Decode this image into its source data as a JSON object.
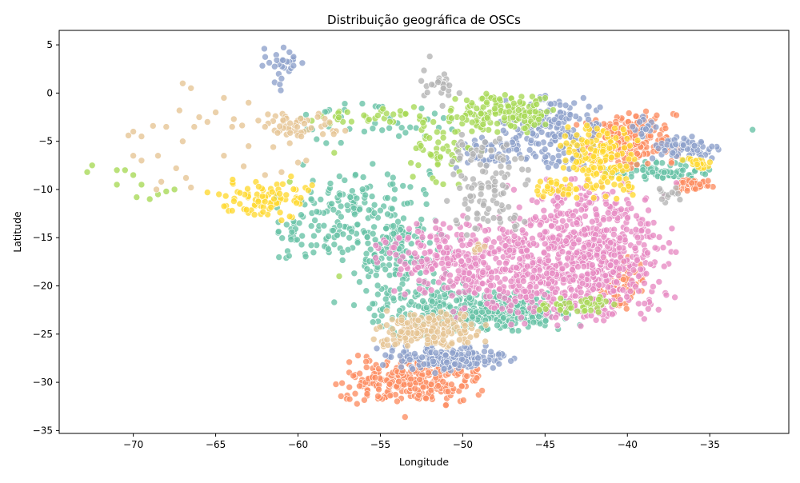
{
  "chart_data": {
    "type": "scatter",
    "title": "Distribuição geográfica de OSCs",
    "xlabel": "Longitude",
    "ylabel": "Latitude",
    "xlim": [
      -74.5,
      -30.2
    ],
    "ylim": [
      -35.3,
      6.5
    ],
    "xticks": [
      -70,
      -65,
      -60,
      -55,
      -50,
      -45,
      -40,
      -35
    ],
    "yticks": [
      5,
      0,
      -5,
      -10,
      -15,
      -20,
      -25,
      -30,
      -35
    ],
    "grid": false,
    "legend": "none",
    "series": [
      {
        "color": "#66c2a5",
        "clusters": [
          {
            "x": -56.5,
            "y": -12.5,
            "sx": 2.2,
            "sy": 2.6,
            "n": 180
          },
          {
            "x": -53.5,
            "y": -17.5,
            "sx": 1.6,
            "sy": 2.2,
            "n": 120
          },
          {
            "x": -48.0,
            "y": -22.5,
            "sx": 2.4,
            "sy": 1.0,
            "n": 320
          },
          {
            "x": -53.0,
            "y": -22.5,
            "sx": 1.5,
            "sy": 1.4,
            "n": 70
          },
          {
            "x": -55.0,
            "y": -3.0,
            "sx": 2.5,
            "sy": 1.2,
            "n": 40
          },
          {
            "x": -38.0,
            "y": -8.0,
            "sx": 1.6,
            "sy": 0.5,
            "n": 90
          },
          {
            "x": -60.0,
            "y": -15.0,
            "sx": 1.2,
            "sy": 1.2,
            "n": 25
          }
        ],
        "points": [
          [
            -32.4,
            -3.8
          ],
          [
            -57.8,
            -21.7
          ],
          [
            -56.6,
            -22.0
          ]
        ]
      },
      {
        "color": "#fc8d62",
        "clusters": [
          {
            "x": -40.0,
            "y": -5.0,
            "sx": 1.5,
            "sy": 1.5,
            "n": 220
          },
          {
            "x": -53.0,
            "y": -29.8,
            "sx": 2.0,
            "sy": 1.2,
            "n": 280
          },
          {
            "x": -40.5,
            "y": -19.8,
            "sx": 0.8,
            "sy": 1.4,
            "n": 70
          },
          {
            "x": -36.0,
            "y": -9.5,
            "sx": 0.6,
            "sy": 0.3,
            "n": 40
          }
        ],
        "points": [
          [
            -53.5,
            -33.6
          ],
          [
            -57.7,
            -30.2
          ]
        ]
      },
      {
        "color": "#8da0cb",
        "clusters": [
          {
            "x": -44.5,
            "y": -4.0,
            "sx": 1.5,
            "sy": 1.8,
            "n": 170
          },
          {
            "x": -51.0,
            "y": -27.5,
            "sx": 2.0,
            "sy": 0.7,
            "n": 180
          },
          {
            "x": -36.5,
            "y": -5.8,
            "sx": 1.0,
            "sy": 0.6,
            "n": 60
          },
          {
            "x": -61.0,
            "y": 2.5,
            "sx": 0.8,
            "sy": 1.3,
            "n": 28
          },
          {
            "x": -48.5,
            "y": -6.0,
            "sx": 1.0,
            "sy": 1.0,
            "n": 40
          },
          {
            "x": -39.0,
            "y": -3.5,
            "sx": 0.5,
            "sy": 0.5,
            "n": 15
          }
        ],
        "points": []
      },
      {
        "color": "#e78ac3",
        "clusters": [
          {
            "x": -42.5,
            "y": -16.5,
            "sx": 2.5,
            "sy": 3.5,
            "n": 650
          },
          {
            "x": -50.0,
            "y": -17.0,
            "sx": 2.5,
            "sy": 2.0,
            "n": 300
          },
          {
            "x": -45.5,
            "y": -20.0,
            "sx": 2.5,
            "sy": 1.8,
            "n": 150
          }
        ],
        "points": []
      },
      {
        "color": "#a6d854",
        "clusters": [
          {
            "x": -47.5,
            "y": -2.0,
            "sx": 1.5,
            "sy": 1.0,
            "n": 150
          },
          {
            "x": -51.0,
            "y": -5.5,
            "sx": 1.0,
            "sy": 2.0,
            "n": 60
          },
          {
            "x": -43.0,
            "y": -22.0,
            "sx": 1.5,
            "sy": 0.4,
            "n": 40
          },
          {
            "x": -56.0,
            "y": -2.5,
            "sx": 1.8,
            "sy": 0.4,
            "n": 30
          }
        ],
        "points": [
          [
            -72.8,
            -8.2
          ],
          [
            -71.0,
            -8.0
          ],
          [
            -70.0,
            -8.5
          ],
          [
            -69.5,
            -9.5
          ],
          [
            -68.5,
            -10.5
          ],
          [
            -67.5,
            -10.0
          ],
          [
            -69.0,
            -11.0
          ],
          [
            -71.0,
            -9.5
          ],
          [
            -72.5,
            -7.5
          ],
          [
            -70.5,
            -8.0
          ],
          [
            -60.5,
            -9.2
          ],
          [
            -57.8,
            -6.2
          ],
          [
            -57.5,
            -19.0
          ],
          [
            -68.0,
            -10.2
          ],
          [
            -69.8,
            -10.8
          ]
        ]
      },
      {
        "color": "#ffd92f",
        "clusters": [
          {
            "x": -41.5,
            "y": -7.0,
            "sx": 1.2,
            "sy": 1.8,
            "n": 160
          },
          {
            "x": -62.0,
            "y": -10.8,
            "sx": 1.3,
            "sy": 1.0,
            "n": 80
          },
          {
            "x": -44.5,
            "y": -9.8,
            "sx": 0.7,
            "sy": 0.5,
            "n": 30
          },
          {
            "x": -35.8,
            "y": -7.2,
            "sx": 0.5,
            "sy": 0.3,
            "n": 20
          }
        ],
        "points": [
          [
            -64.8,
            -10.5
          ],
          [
            -65.5,
            -10.3
          ],
          [
            -60.5,
            -12.8
          ],
          [
            -61.0,
            -13.2
          ],
          [
            -64.0,
            -12.2
          ]
        ]
      },
      {
        "color": "#e5c494",
        "clusters": [
          {
            "x": -52.0,
            "y": -24.5,
            "sx": 1.6,
            "sy": 0.9,
            "n": 180
          },
          {
            "x": -60.0,
            "y": -3.3,
            "sx": 1.8,
            "sy": 0.6,
            "n": 50
          },
          {
            "x": -49.0,
            "y": -16.0,
            "sx": 0.3,
            "sy": 0.3,
            "n": 8
          }
        ],
        "points": [
          [
            -67.0,
            1.0
          ],
          [
            -66.5,
            0.5
          ],
          [
            -67.2,
            -1.8
          ],
          [
            -66.0,
            -2.5
          ],
          [
            -65.5,
            -3.0
          ],
          [
            -64.5,
            -0.5
          ],
          [
            -64.0,
            -3.5
          ],
          [
            -65.0,
            -2.0
          ],
          [
            -63.0,
            -1.0
          ],
          [
            -62.0,
            -3.5
          ],
          [
            -63.0,
            -5.5
          ],
          [
            -64.5,
            -6.5
          ],
          [
            -68.0,
            -3.5
          ],
          [
            -68.5,
            -6.5
          ],
          [
            -70.0,
            -4.0
          ],
          [
            -70.3,
            -4.4
          ],
          [
            -69.5,
            -4.5
          ],
          [
            -68.8,
            -3.4
          ],
          [
            -67.0,
            -5.0
          ],
          [
            -66.8,
            -8.8
          ],
          [
            -67.4,
            -7.8
          ],
          [
            -66.5,
            -9.8
          ],
          [
            -69.5,
            -7.0
          ],
          [
            -70.0,
            -6.5
          ],
          [
            -61.0,
            -8.2
          ],
          [
            -60.0,
            -7.2
          ],
          [
            -59.5,
            -7.0
          ],
          [
            -62.0,
            -8.5
          ],
          [
            -61.5,
            -5.6
          ],
          [
            -60.5,
            -5.2
          ],
          [
            -59.8,
            -4.5
          ],
          [
            -68.3,
            -9.2
          ],
          [
            -68.6,
            -10.0
          ],
          [
            -66.3,
            -3.5
          ],
          [
            -63.3,
            -7.6
          ]
        ]
      },
      {
        "color": "#b3b3b3",
        "clusters": [
          {
            "x": -48.5,
            "y": -9.5,
            "sx": 1.2,
            "sy": 2.5,
            "n": 110
          },
          {
            "x": -51.5,
            "y": 0.8,
            "sx": 0.8,
            "sy": 1.0,
            "n": 25
          },
          {
            "x": -37.5,
            "y": -10.5,
            "sx": 0.4,
            "sy": 0.4,
            "n": 12
          }
        ],
        "points": [
          [
            -52.0,
            3.8
          ]
        ]
      }
    ]
  }
}
